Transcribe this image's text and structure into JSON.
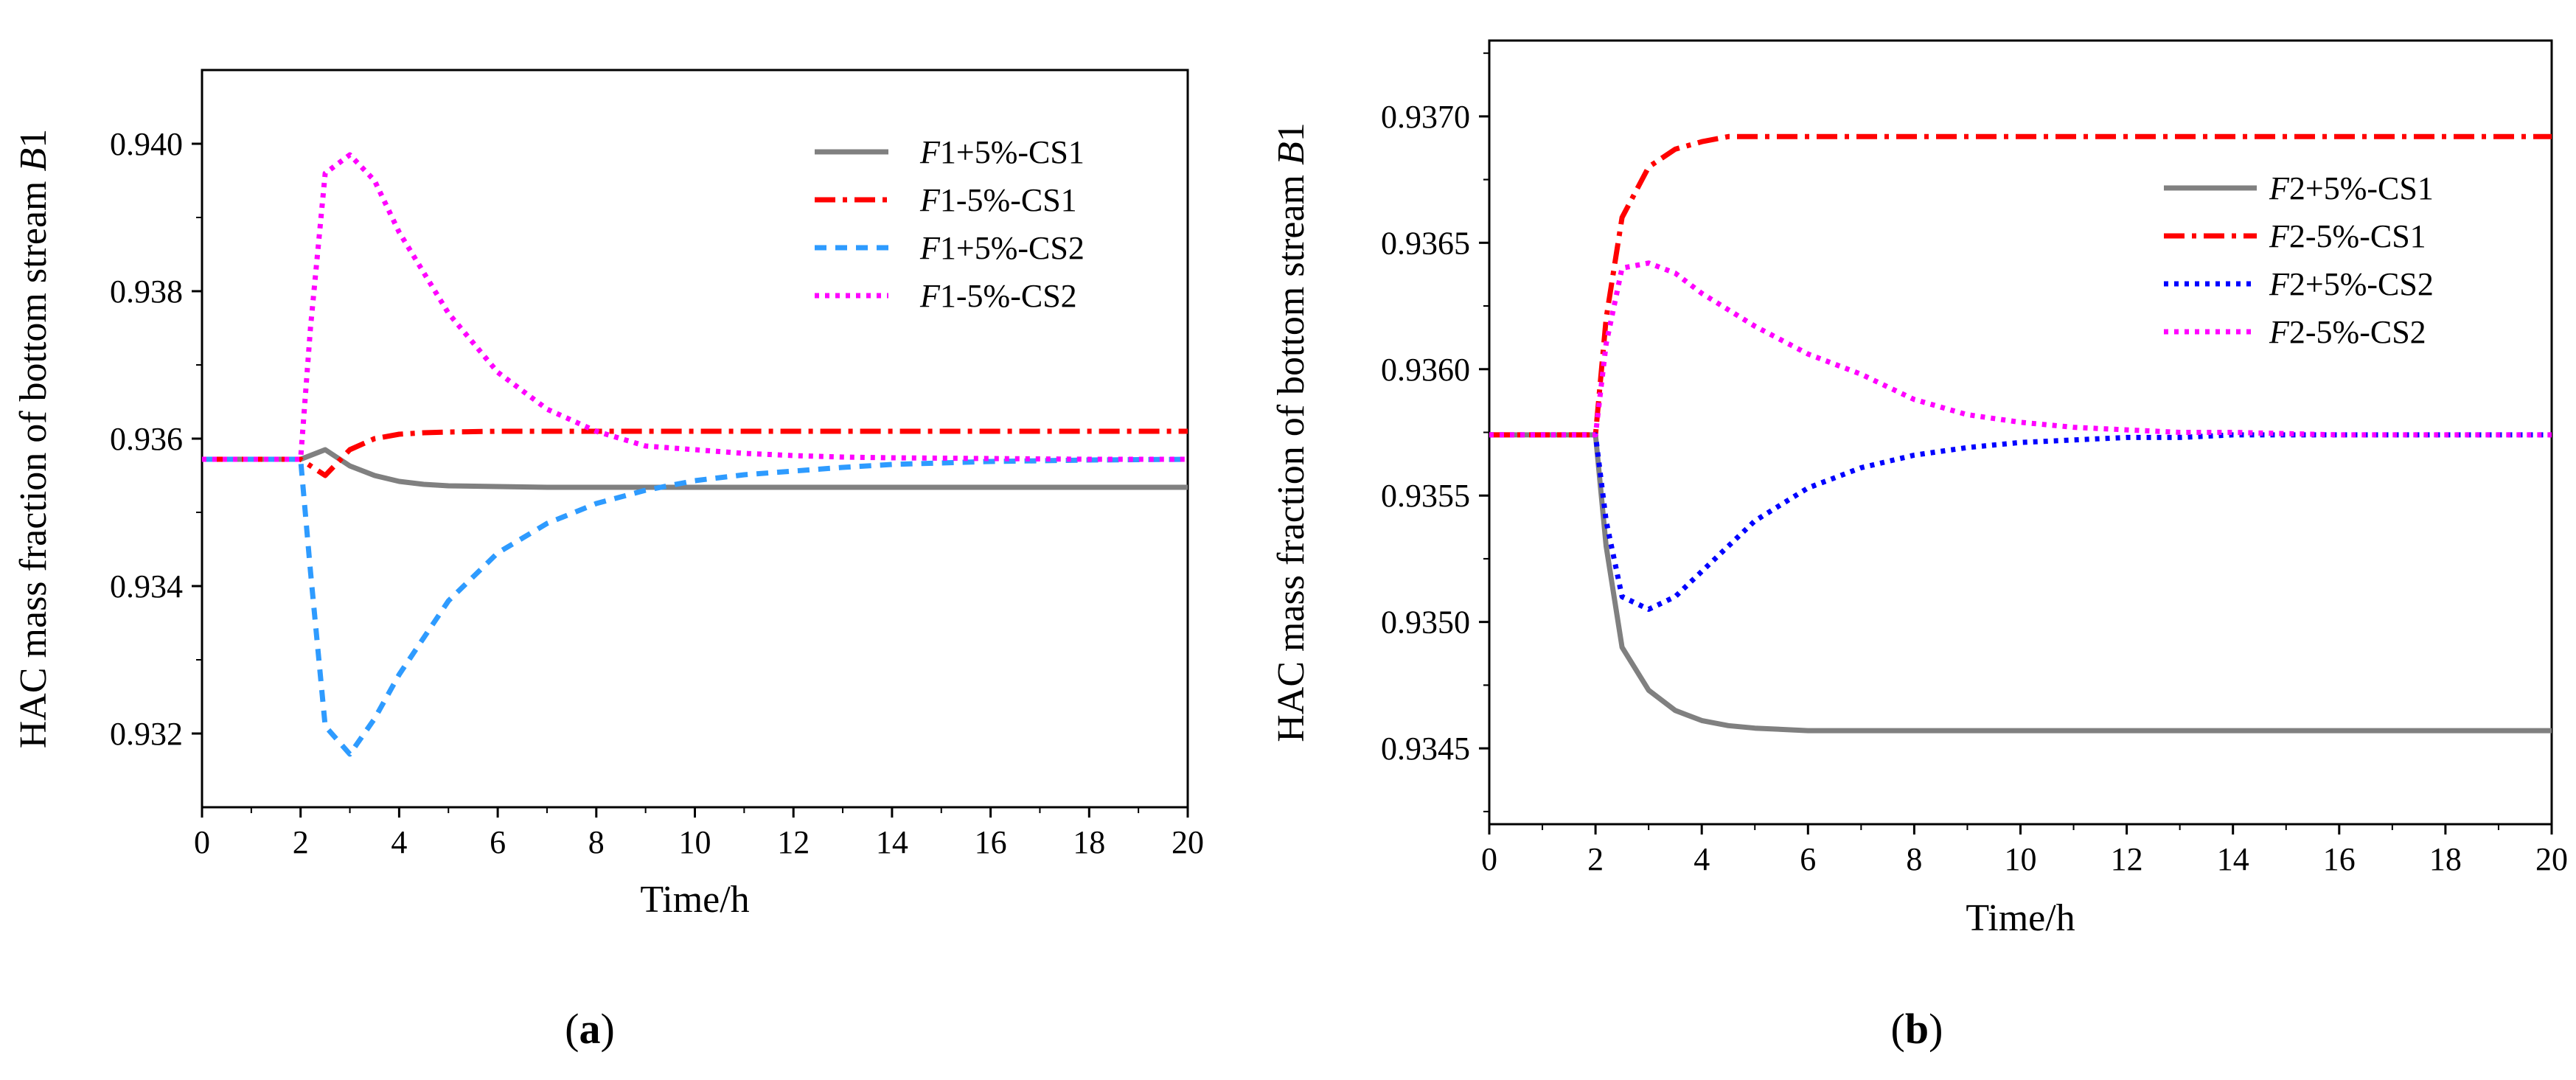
{
  "chart_data": [
    {
      "type": "line",
      "panel_label": "a",
      "title": "",
      "xlabel": "Time/h",
      "ylabel_parts": [
        "HAC mass fraction of bottom stream ",
        "B",
        "1"
      ],
      "xlim": [
        0,
        20
      ],
      "ylim": [
        0.931,
        0.941
      ],
      "xticks": [
        0,
        2,
        4,
        6,
        8,
        10,
        12,
        14,
        16,
        18,
        20
      ],
      "xtick_labels": [
        "0",
        "2",
        "4",
        "6",
        "8",
        "10",
        "12",
        "14",
        "16",
        "18",
        "20"
      ],
      "yticks": [
        0.932,
        0.934,
        0.936,
        0.938,
        0.94
      ],
      "ytick_labels": [
        "0.932",
        "0.934",
        "0.936",
        "0.938",
        "0.940"
      ],
      "legend_position": "top-right",
      "series": [
        {
          "name": "F1+5%-CS1",
          "italic": "F",
          "label_rest": "1+5%-CS1",
          "color": "#808080",
          "dash": "solid",
          "x": [
            0,
            2,
            2.5,
            3,
            3.5,
            4,
            4.5,
            5,
            6,
            7,
            8,
            10,
            12,
            14,
            16,
            18,
            20
          ],
          "y": [
            0.93572,
            0.93572,
            0.93585,
            0.93563,
            0.9355,
            0.93542,
            0.93538,
            0.93536,
            0.93535,
            0.93534,
            0.93534,
            0.93534,
            0.93534,
            0.93534,
            0.93534,
            0.93534,
            0.93534
          ]
        },
        {
          "name": "F1-5%-CS1",
          "italic": "F",
          "label_rest": "1-5%-CS1",
          "color": "#ff0000",
          "dash": "dashdot",
          "x": [
            0,
            2,
            2.5,
            3,
            3.5,
            4,
            4.5,
            5,
            6,
            8,
            10,
            12,
            14,
            16,
            18,
            20
          ],
          "y": [
            0.93572,
            0.93572,
            0.9355,
            0.93585,
            0.936,
            0.93606,
            0.93608,
            0.93609,
            0.9361,
            0.9361,
            0.9361,
            0.9361,
            0.9361,
            0.9361,
            0.9361,
            0.9361
          ]
        },
        {
          "name": "F1+5%-CS2",
          "italic": "F",
          "label_rest": "1+5%-CS2",
          "color": "#2e9bff",
          "dash": "dash",
          "x": [
            0,
            2,
            2.2,
            2.5,
            3,
            3.5,
            4,
            5,
            6,
            7,
            8,
            9,
            10,
            11,
            12,
            13,
            14,
            16,
            18,
            20
          ],
          "y": [
            0.93572,
            0.93572,
            0.9342,
            0.9321,
            0.93172,
            0.9322,
            0.9328,
            0.9338,
            0.93445,
            0.93485,
            0.93512,
            0.9353,
            0.93543,
            0.93551,
            0.93556,
            0.93561,
            0.93565,
            0.93569,
            0.93571,
            0.93572
          ]
        },
        {
          "name": "F1-5%-CS2",
          "italic": "F",
          "label_rest": "1-5%-CS2",
          "color": "#ff00ff",
          "dash": "dot",
          "x": [
            0,
            2,
            2.2,
            2.5,
            3,
            3.5,
            4,
            5,
            6,
            7,
            8,
            9,
            10,
            11,
            12,
            13,
            14,
            16,
            18,
            20
          ],
          "y": [
            0.93572,
            0.93572,
            0.9375,
            0.9396,
            0.93985,
            0.9395,
            0.9388,
            0.9377,
            0.9369,
            0.9364,
            0.9361,
            0.9359,
            0.93585,
            0.9358,
            0.93577,
            0.93575,
            0.93574,
            0.93573,
            0.93572,
            0.93572
          ]
        }
      ]
    },
    {
      "type": "line",
      "panel_label": "b",
      "title": "",
      "xlabel": "Time/h",
      "ylabel_parts": [
        "HAC mass fraction of bottom stream ",
        "B",
        "1"
      ],
      "xlim": [
        0,
        20
      ],
      "ylim": [
        0.9342,
        0.9373
      ],
      "xticks": [
        0,
        2,
        4,
        6,
        8,
        10,
        12,
        14,
        16,
        18,
        20
      ],
      "xtick_labels": [
        "0",
        "2",
        "4",
        "6",
        "8",
        "10",
        "12",
        "14",
        "16",
        "18",
        "20"
      ],
      "yticks": [
        0.9345,
        0.935,
        0.9355,
        0.936,
        0.9365,
        0.937
      ],
      "ytick_labels": [
        "0.9345",
        "0.9350",
        "0.9355",
        "0.9360",
        "0.9365",
        "0.9370"
      ],
      "legend_position": "upper-right",
      "series": [
        {
          "name": "F2+5%-CS1",
          "italic": "F",
          "label_rest": "2+5%-CS1",
          "color": "#808080",
          "dash": "solid",
          "x": [
            0,
            2,
            2.2,
            2.5,
            3,
            3.5,
            4,
            4.5,
            5,
            6,
            8,
            10,
            12,
            14,
            16,
            18,
            20
          ],
          "y": [
            0.93574,
            0.93574,
            0.9353,
            0.9349,
            0.93473,
            0.93465,
            0.93461,
            0.93459,
            0.93458,
            0.93457,
            0.93457,
            0.93457,
            0.93457,
            0.93457,
            0.93457,
            0.93457,
            0.93457
          ]
        },
        {
          "name": "F2-5%-CS1",
          "italic": "F",
          "label_rest": "2-5%-CS1",
          "color": "#ff0000",
          "dash": "dashdot",
          "x": [
            0,
            2,
            2.2,
            2.5,
            3,
            3.5,
            4,
            4.5,
            5,
            6,
            8,
            10,
            12,
            14,
            16,
            18,
            20
          ],
          "y": [
            0.93574,
            0.93574,
            0.9362,
            0.9366,
            0.9368,
            0.93687,
            0.9369,
            0.93692,
            0.93692,
            0.93692,
            0.93692,
            0.93692,
            0.93692,
            0.93692,
            0.93692,
            0.93692,
            0.93692
          ]
        },
        {
          "name": "F2+5%-CS2",
          "italic": "F",
          "label_rest": "2+5%-CS2",
          "color": "#0000ff",
          "dash": "dot",
          "x": [
            0,
            2,
            2.2,
            2.5,
            3,
            3.5,
            4,
            5,
            6,
            7,
            8,
            9,
            10,
            11,
            12,
            13,
            14,
            16,
            18,
            20
          ],
          "y": [
            0.93574,
            0.93574,
            0.9354,
            0.9351,
            0.93505,
            0.9351,
            0.9352,
            0.9354,
            0.93553,
            0.93561,
            0.93566,
            0.93569,
            0.93571,
            0.93572,
            0.93573,
            0.93573,
            0.93574,
            0.93574,
            0.93574,
            0.93574
          ]
        },
        {
          "name": "F2-5%-CS2",
          "italic": "F",
          "label_rest": "2-5%-CS2",
          "color": "#ff00ff",
          "dash": "dot",
          "x": [
            0,
            2,
            2.2,
            2.5,
            3,
            3.5,
            4,
            5,
            6,
            7,
            8,
            9,
            10,
            11,
            12,
            13,
            14,
            16,
            18,
            20
          ],
          "y": [
            0.93574,
            0.93574,
            0.9361,
            0.9364,
            0.93642,
            0.93638,
            0.9363,
            0.93617,
            0.93606,
            0.93598,
            0.93588,
            0.93582,
            0.93579,
            0.93577,
            0.93576,
            0.93575,
            0.93575,
            0.93574,
            0.93574,
            0.93574
          ]
        }
      ]
    }
  ]
}
